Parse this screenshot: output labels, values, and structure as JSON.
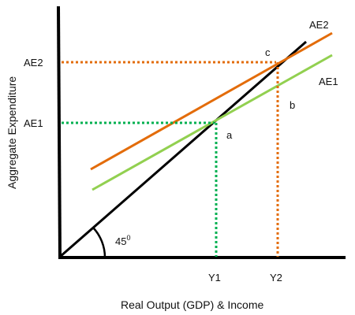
{
  "axes": {
    "x_title": "Real Output (GDP) & Income",
    "y_title": "Aggregate Expenditure"
  },
  "ticks": {
    "y_ae1": "AE1",
    "y_ae2": "AE2",
    "x_y1": "Y1",
    "x_y2": "Y2"
  },
  "lines": {
    "ae1_label": "AE1",
    "ae2_label": "AE2"
  },
  "points": {
    "a": "a",
    "b": "b",
    "c": "c"
  },
  "angle": {
    "value": "45",
    "superscript": "0"
  },
  "colors": {
    "axis": "#000000",
    "forty_five_line": "#000000",
    "ae1": "#92d050",
    "ae2": "#e36c0a",
    "dotted_ae1": "#00b050",
    "dotted_ae2": "#e36c0a"
  }
}
